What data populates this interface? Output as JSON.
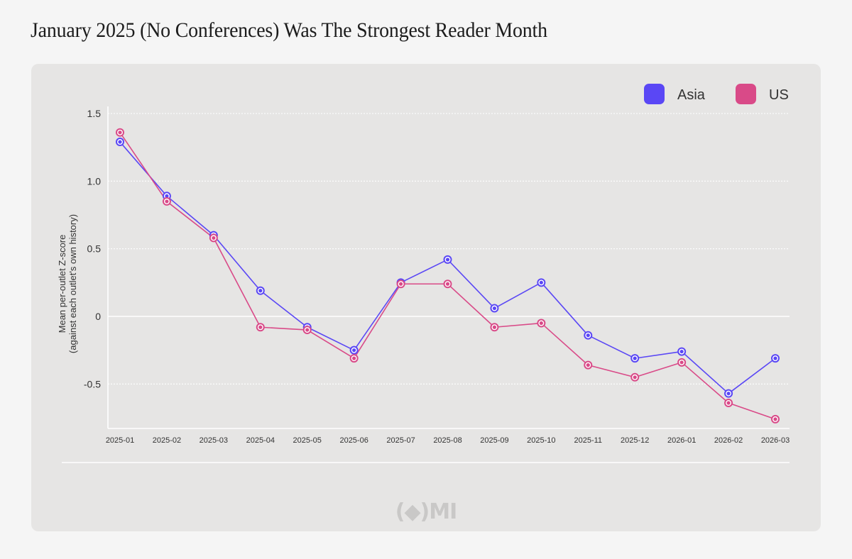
{
  "title": "January 2025 (No Conferences) Was The Strongest Reader Month",
  "watermark": "(◆)MI",
  "colors": {
    "Asia": "#5a47f5",
    "US": "#d94a88",
    "background": "#f5f5f5",
    "panel": "#e6e5e4",
    "grid": "#ffffff"
  },
  "chart_data": {
    "type": "line",
    "ylabel": "Mean per-outlet Z-score\n(against each outlet's own history)",
    "xlabel": "",
    "x": [
      "2025-01",
      "2025-02",
      "2025-03",
      "2025-04",
      "2025-05",
      "2025-06",
      "2025-07",
      "2025-08",
      "2025-09",
      "2025-10",
      "2025-11",
      "2025-12",
      "2026-01",
      "2026-02",
      "2026-03"
    ],
    "y_ticks": [
      1.5,
      1.0,
      0.5,
      0,
      -0.5
    ],
    "y_tick_labels": [
      "1.5",
      "1.0",
      "0.5",
      "0",
      "-0.5"
    ],
    "ylim": [
      -0.82,
      1.5
    ],
    "grid": true,
    "legend_position": "top-right",
    "series": [
      {
        "name": "Asia",
        "values": [
          1.29,
          0.89,
          0.6,
          0.19,
          -0.08,
          -0.25,
          0.25,
          0.42,
          0.06,
          0.25,
          -0.14,
          -0.31,
          -0.26,
          -0.57,
          -0.31
        ]
      },
      {
        "name": "US",
        "values": [
          1.36,
          0.85,
          0.58,
          -0.08,
          -0.1,
          -0.31,
          0.24,
          0.24,
          -0.08,
          -0.05,
          -0.36,
          -0.45,
          -0.34,
          -0.64,
          -0.76
        ]
      }
    ]
  }
}
